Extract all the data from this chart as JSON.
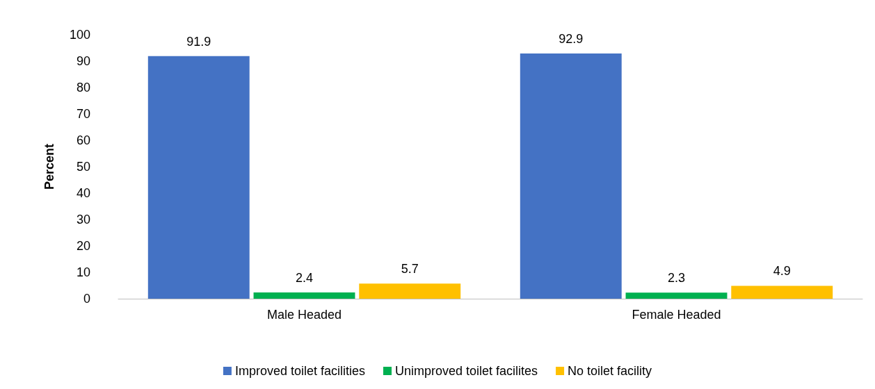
{
  "chart_data": {
    "type": "bar",
    "ylabel": "Percent",
    "categories": [
      "Male Headed",
      "Female Headed"
    ],
    "series": [
      {
        "name": "Improved toilet facilities",
        "color": "#4472c4",
        "values": [
          91.9,
          92.9
        ]
      },
      {
        "name": "Unimproved toilet facilites",
        "color": "#00b050",
        "values": [
          2.4,
          2.3
        ]
      },
      {
        "name": "No toilet facility",
        "color": "#ffc000",
        "values": [
          5.7,
          4.9
        ]
      }
    ],
    "ylim": [
      0,
      100
    ],
    "yticks": [
      0,
      10,
      20,
      30,
      40,
      50,
      60,
      70,
      80,
      90,
      100
    ],
    "data_labels": true,
    "grid": false,
    "legend": "bottom"
  }
}
